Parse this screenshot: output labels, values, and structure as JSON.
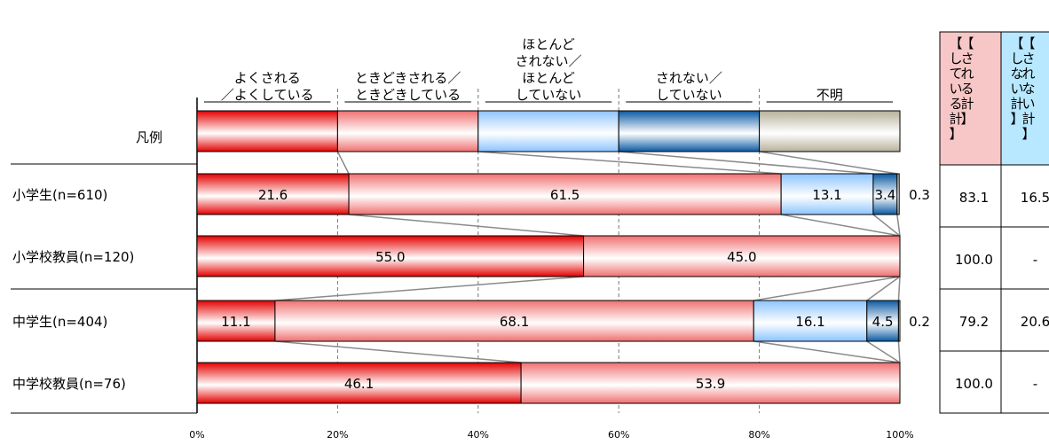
{
  "chart_data": {
    "type": "bar",
    "orientation": "horizontal",
    "stacked": true,
    "legend_row_label": "凡例",
    "legend_categories": [
      {
        "lines": [
          "よくされる",
          "／よくしている"
        ],
        "color": "#e40000"
      },
      {
        "lines": [
          "ときどきされる／",
          "ときどきしている"
        ],
        "color": "#f07070"
      },
      {
        "lines": [
          "ほとんど",
          "されない／",
          "ほとんど",
          "していない"
        ],
        "color": "#8cc4ff"
      },
      {
        "lines": [
          "されない／",
          "していない"
        ],
        "color": "#0a5aa4"
      },
      {
        "lines": [
          "不明"
        ],
        "color": "#b7b19a"
      }
    ],
    "categories": [
      "小学生(n=610)",
      "小学校教員(n=120)",
      "中学生(n=404)",
      "中学校教員(n=76)"
    ],
    "values": [
      [
        21.6,
        61.5,
        13.1,
        3.4,
        0.3
      ],
      [
        55.0,
        45.0,
        0,
        0,
        0
      ],
      [
        11.1,
        68.1,
        16.1,
        4.5,
        0.2
      ],
      [
        46.1,
        53.9,
        0,
        0,
        0
      ]
    ],
    "value_labels": [
      [
        "21.6",
        "61.5",
        "13.1",
        "3.4",
        "0.3"
      ],
      [
        "55.0",
        "45.0",
        "",
        "",
        ""
      ],
      [
        "11.1",
        "68.1",
        "16.1",
        "4.5",
        "0.2"
      ],
      [
        "46.1",
        "53.9",
        "",
        "",
        ""
      ]
    ],
    "x_ticks": [
      "0%",
      "20%",
      "40%",
      "60%",
      "80%",
      "100%"
    ],
    "xlim": [
      0,
      100
    ],
    "grid": true,
    "summary_columns": [
      {
        "label_lines": [
          "【",
          "さ",
          "れ",
          "る",
          "計",
          "】"
        ],
        "label_lines_2": [
          "【",
          "し",
          "て",
          "い",
          "る",
          "計",
          "】"
        ],
        "color": "#f7c6c6",
        "values": [
          "83.1",
          "100.0",
          "79.2",
          "100.0"
        ]
      },
      {
        "label_lines": [
          "【",
          "さ",
          "れ",
          "な",
          "い",
          "計",
          "】"
        ],
        "label_lines_2": [
          "【",
          "し",
          "な",
          "い",
          "計",
          "】"
        ],
        "color": "#b7e8ff",
        "values": [
          "16.5",
          "-",
          "20.6",
          "-"
        ]
      }
    ]
  }
}
